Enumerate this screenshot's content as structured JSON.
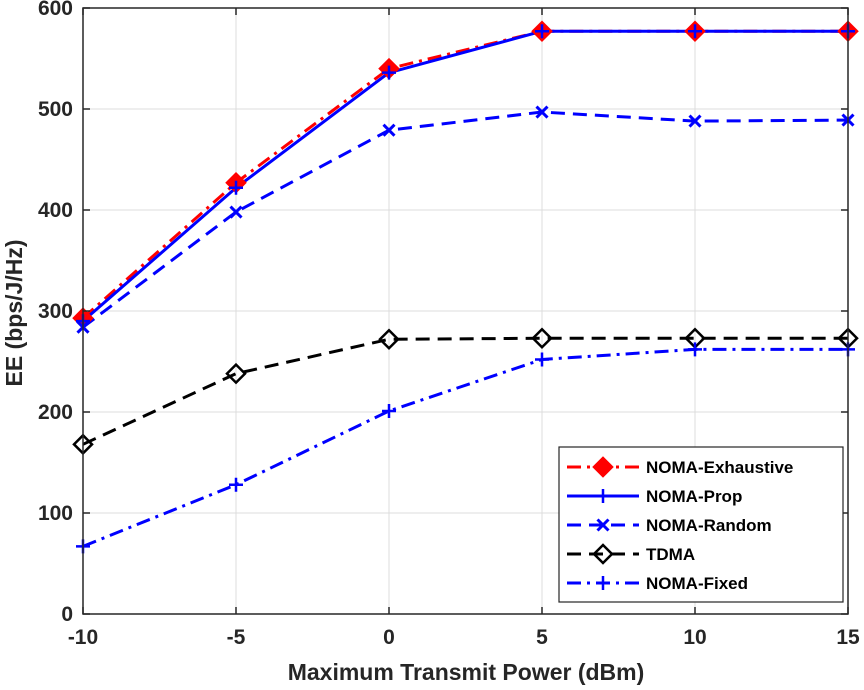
{
  "chart_data": {
    "type": "line",
    "title": "",
    "xlabel": "Maximum Transmit Power (dBm)",
    "ylabel": "EE (bps/J/Hz)",
    "x": [
      -10,
      -5,
      0,
      5,
      10,
      15
    ],
    "x_tick_labels": [
      "-10",
      "-5",
      "0",
      "5",
      "10",
      "15"
    ],
    "y_tick_labels": [
      "0",
      "100",
      "200",
      "300",
      "400",
      "500",
      "600"
    ],
    "y_ticks": [
      0,
      100,
      200,
      300,
      400,
      500,
      600
    ],
    "xlim": [
      -10,
      15
    ],
    "ylim": [
      0,
      600
    ],
    "grid": true,
    "legend_position": "bottom-right",
    "series": [
      {
        "name": "NOMA-Exhaustive",
        "values": [
          293,
          427,
          540,
          577,
          577,
          577
        ],
        "color": "#ff0000",
        "dash": "dashdot",
        "marker": "diamond",
        "marker_fill": "#ff0000"
      },
      {
        "name": "NOMA-Prop",
        "values": [
          290,
          422,
          536,
          577,
          577,
          577
        ],
        "color": "#0000ff",
        "dash": "solid",
        "marker": "plus",
        "marker_fill": "none"
      },
      {
        "name": "NOMA-Random",
        "values": [
          284,
          398,
          479,
          497,
          488,
          489
        ],
        "color": "#0000ff",
        "dash": "dashed",
        "marker": "x",
        "marker_fill": "none"
      },
      {
        "name": "TDMA",
        "values": [
          168,
          238,
          272,
          273,
          273,
          273
        ],
        "color": "#000000",
        "dash": "dashed",
        "marker": "diamond",
        "marker_fill": "none"
      },
      {
        "name": "NOMA-Fixed",
        "values": [
          67,
          128,
          201,
          252,
          262,
          262
        ],
        "color": "#0000ff",
        "dash": "dashdot",
        "marker": "plus",
        "marker_fill": "none"
      }
    ]
  }
}
